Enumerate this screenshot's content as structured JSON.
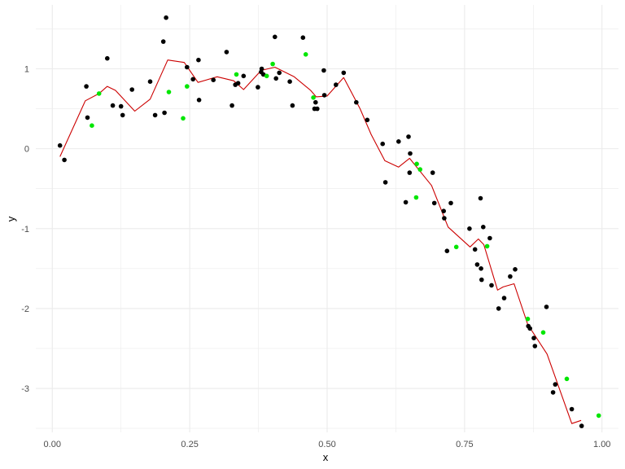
{
  "chart_data": {
    "type": "scatter",
    "title": "",
    "xlabel": "x",
    "ylabel": "y",
    "xlim": [
      -0.03,
      1.03
    ],
    "ylim": [
      -3.55,
      1.8
    ],
    "x_ticks": [
      0.0,
      0.25,
      0.5,
      0.75,
      1.0
    ],
    "x_tick_labels": [
      "0.00",
      "0.25",
      "0.50",
      "0.75",
      "1.00"
    ],
    "y_ticks": [
      1,
      0,
      -1,
      -2,
      -3
    ],
    "y_tick_labels": [
      "1",
      "0",
      "-1",
      "-2",
      "-3"
    ],
    "grid": true,
    "legend": "none",
    "colors": {
      "black_points": "#000000",
      "green_points": "#00e600",
      "line": "#cc0000",
      "grid": "#ebebeb"
    },
    "series": [
      {
        "kind": "points",
        "color": "#000000",
        "points": [
          [
            0.014,
            0.04
          ],
          [
            0.022,
            -0.14
          ],
          [
            0.062,
            0.78
          ],
          [
            0.064,
            0.39
          ],
          [
            0.1,
            1.13
          ],
          [
            0.11,
            0.54
          ],
          [
            0.125,
            0.53
          ],
          [
            0.128,
            0.42
          ],
          [
            0.145,
            0.74
          ],
          [
            0.178,
            0.84
          ],
          [
            0.187,
            0.42
          ],
          [
            0.202,
            1.34
          ],
          [
            0.204,
            0.45
          ],
          [
            0.207,
            1.64
          ],
          [
            0.245,
            1.02
          ],
          [
            0.256,
            0.87
          ],
          [
            0.266,
            1.11
          ],
          [
            0.267,
            0.61
          ],
          [
            0.293,
            0.86
          ],
          [
            0.317,
            1.21
          ],
          [
            0.327,
            0.54
          ],
          [
            0.333,
            0.8
          ],
          [
            0.338,
            0.82
          ],
          [
            0.348,
            0.91
          ],
          [
            0.374,
            0.77
          ],
          [
            0.38,
            0.96
          ],
          [
            0.381,
            1.0
          ],
          [
            0.384,
            0.93
          ],
          [
            0.405,
            1.4
          ],
          [
            0.407,
            0.88
          ],
          [
            0.413,
            0.95
          ],
          [
            0.432,
            0.84
          ],
          [
            0.437,
            0.54
          ],
          [
            0.456,
            1.39
          ],
          [
            0.477,
            0.5
          ],
          [
            0.479,
            0.58
          ],
          [
            0.482,
            0.5
          ],
          [
            0.494,
            0.98
          ],
          [
            0.495,
            0.67
          ],
          [
            0.516,
            0.8
          ],
          [
            0.53,
            0.95
          ],
          [
            0.553,
            0.58
          ],
          [
            0.573,
            0.36
          ],
          [
            0.601,
            0.06
          ],
          [
            0.606,
            -0.42
          ],
          [
            0.63,
            0.09
          ],
          [
            0.643,
            -0.67
          ],
          [
            0.648,
            0.15
          ],
          [
            0.65,
            -0.3
          ],
          [
            0.651,
            -0.06
          ],
          [
            0.692,
            -0.3
          ],
          [
            0.695,
            -0.68
          ],
          [
            0.712,
            -0.78
          ],
          [
            0.713,
            -0.87
          ],
          [
            0.718,
            -1.28
          ],
          [
            0.725,
            -0.68
          ],
          [
            0.759,
            -1.0
          ],
          [
            0.769,
            -1.26
          ],
          [
            0.773,
            -1.45
          ],
          [
            0.78,
            -1.5
          ],
          [
            0.781,
            -1.64
          ],
          [
            0.784,
            -0.98
          ],
          [
            0.779,
            -0.62
          ],
          [
            0.796,
            -1.12
          ],
          [
            0.799,
            -1.71
          ],
          [
            0.812,
            -2.0
          ],
          [
            0.822,
            -1.87
          ],
          [
            0.833,
            -1.6
          ],
          [
            0.842,
            -1.51
          ],
          [
            0.866,
            -2.22
          ],
          [
            0.869,
            -2.25
          ],
          [
            0.876,
            -2.37
          ],
          [
            0.878,
            -2.47
          ],
          [
            0.899,
            -1.98
          ],
          [
            0.911,
            -3.05
          ],
          [
            0.915,
            -2.95
          ],
          [
            0.945,
            -3.26
          ],
          [
            0.963,
            -3.47
          ]
        ]
      },
      {
        "kind": "points",
        "color": "#00e600",
        "points": [
          [
            0.072,
            0.29
          ],
          [
            0.085,
            0.69
          ],
          [
            0.212,
            0.71
          ],
          [
            0.238,
            0.38
          ],
          [
            0.245,
            0.78
          ],
          [
            0.335,
            0.93
          ],
          [
            0.39,
            0.91
          ],
          [
            0.401,
            1.06
          ],
          [
            0.461,
            1.18
          ],
          [
            0.475,
            0.64
          ],
          [
            0.662,
            -0.61
          ],
          [
            0.663,
            -0.19
          ],
          [
            0.669,
            -0.26
          ],
          [
            0.735,
            -1.23
          ],
          [
            0.791,
            -1.22
          ],
          [
            0.865,
            -2.13
          ],
          [
            0.893,
            -2.3
          ],
          [
            0.936,
            -2.88
          ],
          [
            0.994,
            -3.34
          ]
        ]
      },
      {
        "kind": "line",
        "color": "#cc0000",
        "points": [
          [
            0.014,
            -0.1
          ],
          [
            0.06,
            0.6
          ],
          [
            0.085,
            0.69
          ],
          [
            0.1,
            0.78
          ],
          [
            0.115,
            0.73
          ],
          [
            0.15,
            0.47
          ],
          [
            0.178,
            0.62
          ],
          [
            0.21,
            1.11
          ],
          [
            0.24,
            1.08
          ],
          [
            0.265,
            0.83
          ],
          [
            0.3,
            0.9
          ],
          [
            0.33,
            0.85
          ],
          [
            0.348,
            0.74
          ],
          [
            0.38,
            0.98
          ],
          [
            0.405,
            1.02
          ],
          [
            0.44,
            0.9
          ],
          [
            0.47,
            0.73
          ],
          [
            0.48,
            0.65
          ],
          [
            0.5,
            0.66
          ],
          [
            0.53,
            0.89
          ],
          [
            0.56,
            0.5
          ],
          [
            0.58,
            0.18
          ],
          [
            0.605,
            -0.15
          ],
          [
            0.63,
            -0.23
          ],
          [
            0.65,
            -0.12
          ],
          [
            0.69,
            -0.46
          ],
          [
            0.72,
            -0.98
          ],
          [
            0.76,
            -1.23
          ],
          [
            0.775,
            -1.13
          ],
          [
            0.785,
            -1.2
          ],
          [
            0.81,
            -1.77
          ],
          [
            0.82,
            -1.73
          ],
          [
            0.84,
            -1.69
          ],
          [
            0.865,
            -2.2
          ],
          [
            0.9,
            -2.57
          ],
          [
            0.945,
            -3.44
          ],
          [
            0.962,
            -3.4
          ]
        ]
      }
    ]
  }
}
